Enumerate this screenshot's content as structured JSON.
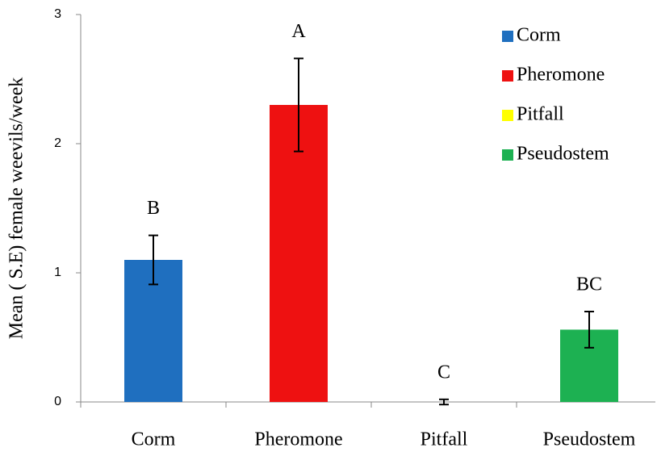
{
  "chart_data": {
    "type": "bar",
    "y_label": "Mean (   S.E) female weevils/week",
    "categories": [
      "Corm",
      "Pheromone",
      "Pitfall",
      "Pseudostem"
    ],
    "values": [
      1.1,
      2.3,
      0,
      0.56
    ],
    "errors": [
      0.19,
      0.36,
      0.02,
      0.14
    ],
    "colors": [
      "#1f6fbf",
      "#ee1111",
      "#ffff00",
      "#1db152"
    ],
    "annotations": [
      "B",
      "A",
      "C",
      "BC"
    ],
    "ylim": [
      0,
      3
    ],
    "yticks": [
      0,
      1,
      2,
      3
    ],
    "legend": "upper right"
  }
}
